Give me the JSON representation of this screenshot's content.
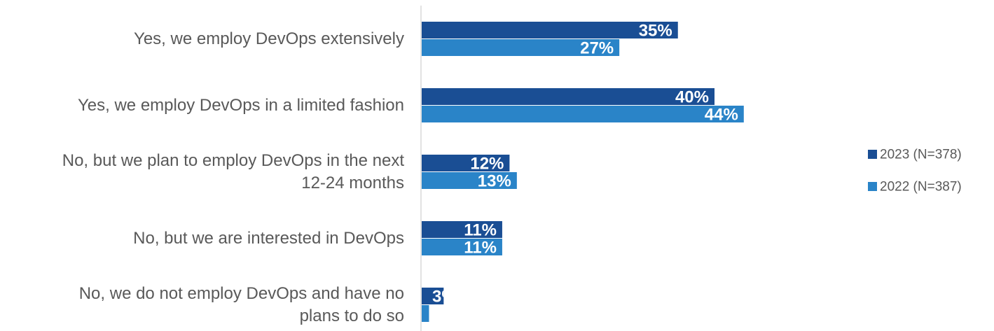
{
  "chart_data": {
    "type": "bar",
    "orientation": "horizontal",
    "categories": [
      [
        "Yes, we employ DevOps extensively"
      ],
      [
        "Yes, we employ DevOps in a limited fashion"
      ],
      [
        "No, but we plan to employ DevOps in the next",
        "12-24 months"
      ],
      [
        "No, but we are interested in DevOps"
      ],
      [
        "No, we do not employ DevOps and have no",
        "plans to do so"
      ]
    ],
    "series": [
      {
        "name": "2023 (N=378)",
        "values": [
          35,
          40,
          12,
          11,
          3
        ],
        "labels": [
          "35%",
          "40%",
          "12%",
          "11%",
          "3%"
        ],
        "color": "#1a4e94"
      },
      {
        "name": "2022 (N=387)",
        "values": [
          27,
          44,
          13,
          11,
          1
        ],
        "labels": [
          "27%",
          "44%",
          "13%",
          "11%",
          ""
        ],
        "color": "#2a84c8"
      }
    ],
    "xlim": [
      0,
      50
    ],
    "legend_position": "right",
    "grid": false,
    "axis_color": "#d9d9d9"
  }
}
